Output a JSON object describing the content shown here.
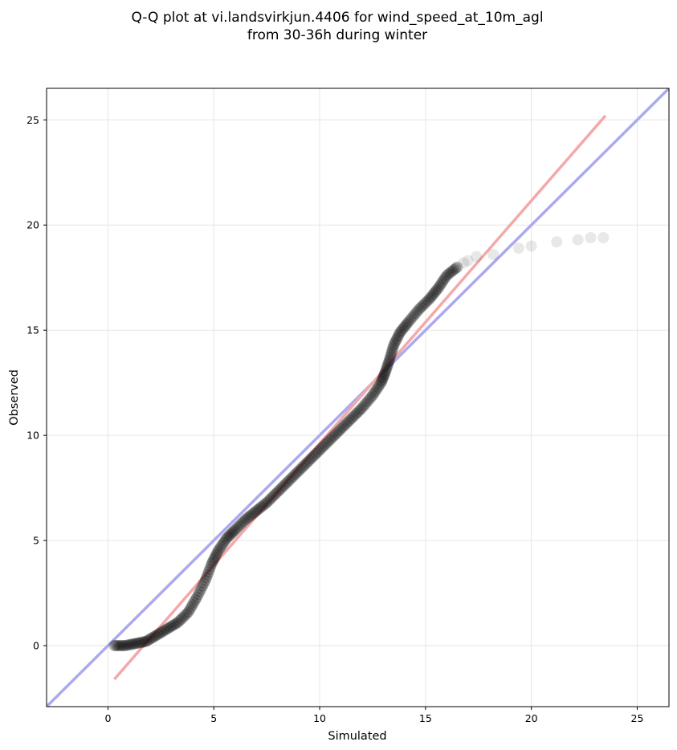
{
  "chart_data": {
    "type": "scatter",
    "title": [
      "Q-Q plot at vi.landsvirkjun.4406 for wind_speed_at_10m_agl",
      "from 30-36h during winter"
    ],
    "xlabel": "Simulated",
    "ylabel": "Observed",
    "xlim": [
      -2.9,
      26.5
    ],
    "ylim": [
      -2.9,
      26.5
    ],
    "x_ticks": [
      0,
      5,
      10,
      15,
      20,
      25
    ],
    "y_ticks": [
      0,
      5,
      10,
      15,
      20,
      25
    ],
    "grid": true,
    "quantile_curve": [
      [
        0.3,
        0.0
      ],
      [
        0.8,
        0.0
      ],
      [
        1.3,
        0.1
      ],
      [
        1.8,
        0.2
      ],
      [
        2.3,
        0.5
      ],
      [
        2.8,
        0.8
      ],
      [
        3.3,
        1.1
      ],
      [
        3.8,
        1.6
      ],
      [
        4.2,
        2.3
      ],
      [
        4.6,
        3.1
      ],
      [
        4.9,
        3.9
      ],
      [
        5.2,
        4.5
      ],
      [
        5.6,
        5.1
      ],
      [
        6.0,
        5.5
      ],
      [
        6.5,
        6.0
      ],
      [
        7.0,
        6.4
      ],
      [
        7.5,
        6.8
      ],
      [
        8.0,
        7.3
      ],
      [
        8.5,
        7.8
      ],
      [
        9.0,
        8.3
      ],
      [
        9.5,
        8.8
      ],
      [
        10.0,
        9.3
      ],
      [
        10.5,
        9.8
      ],
      [
        11.0,
        10.3
      ],
      [
        11.5,
        10.8
      ],
      [
        12.0,
        11.3
      ],
      [
        12.5,
        11.9
      ],
      [
        12.9,
        12.5
      ],
      [
        13.1,
        13.0
      ],
      [
        13.3,
        13.6
      ],
      [
        13.5,
        14.3
      ],
      [
        13.8,
        14.9
      ],
      [
        14.2,
        15.4
      ],
      [
        14.7,
        16.0
      ],
      [
        15.2,
        16.5
      ],
      [
        15.6,
        17.0
      ],
      [
        16.0,
        17.6
      ],
      [
        16.5,
        18.0
      ]
    ],
    "tail_points": [
      [
        16.8,
        18.2
      ],
      [
        17.0,
        18.3
      ],
      [
        17.4,
        18.5
      ],
      [
        18.2,
        18.6
      ],
      [
        19.4,
        18.9
      ],
      [
        20.0,
        19.0
      ],
      [
        21.2,
        19.2
      ],
      [
        22.2,
        19.3
      ],
      [
        22.8,
        19.4
      ],
      [
        23.4,
        19.4
      ]
    ],
    "identity_line": {
      "x": [
        -3,
        27
      ],
      "y": [
        -3,
        27
      ],
      "color": "#aaaaee"
    },
    "fit_line": {
      "x": [
        0.3,
        23.5
      ],
      "y": [
        -1.6,
        25.2
      ],
      "color": "#f4a9a9"
    },
    "point_color": "#000000"
  }
}
